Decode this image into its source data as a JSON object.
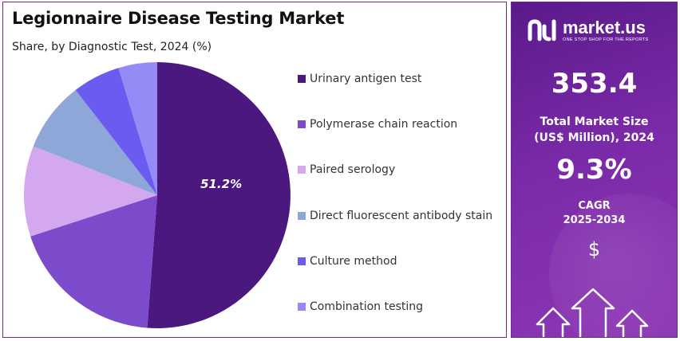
{
  "chart_data": {
    "type": "pie",
    "title": "Legionnaire Disease Testing Market",
    "subtitle": "Share, by Diagnostic Test, 2024 (%)",
    "categories": [
      "Urinary antigen test",
      "Polymerase chain reaction",
      "Paired serology",
      "Direct fluorescent antibody stain",
      "Culture method",
      "Combination testing"
    ],
    "values": [
      51.2,
      18.8,
      11.0,
      8.5,
      5.8,
      4.7
    ],
    "colors": [
      "#4b1880",
      "#7c4bcc",
      "#d4a8ee",
      "#8fa6d9",
      "#6a5cf0",
      "#948bf7"
    ],
    "data_labels": [
      {
        "index": 0,
        "text": "51.2%"
      }
    ],
    "legend_position": "right"
  },
  "side_panel": {
    "brand_name": "market.us",
    "brand_tagline": "ONE STOP SHOP FOR THE REPORTS",
    "market_size_value": "353.4",
    "market_size_label_line1": "Total Market Size",
    "market_size_label_line2": "(US$ Million), 2024",
    "cagr_value": "9.3%",
    "cagr_label_line1": "CAGR",
    "cagr_label_line2": "2025-2034",
    "currency_symbol": "$",
    "icons": [
      "brand-logo-icon",
      "dollar-icon",
      "growth-arrows-icon"
    ]
  }
}
